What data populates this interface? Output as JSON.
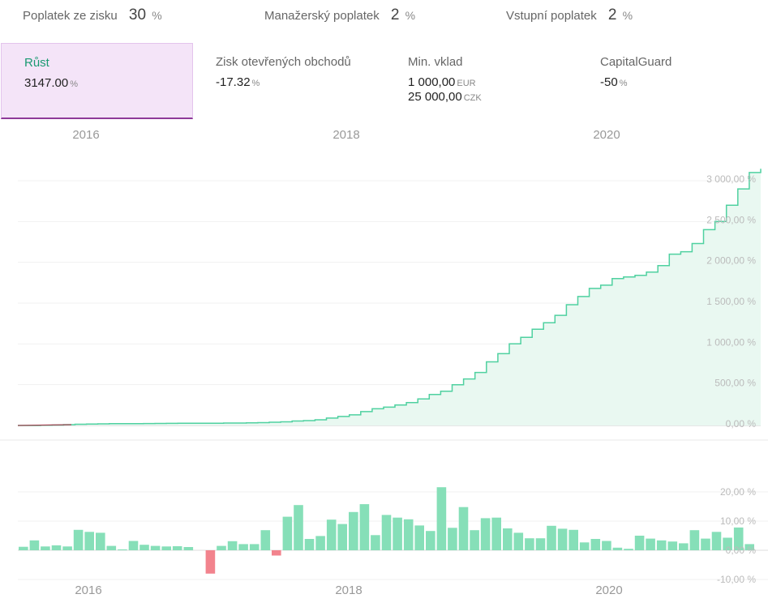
{
  "fees": [
    {
      "label": "Poplatek ze zisku",
      "value": "30",
      "unit": "%"
    },
    {
      "label": "Manažerský poplatek",
      "value": "2",
      "unit": "%"
    },
    {
      "label": "Vstupní poplatek",
      "value": "2",
      "unit": "%"
    }
  ],
  "stats": {
    "growth": {
      "label": "Růst",
      "value": "3147.00",
      "unit": "%"
    },
    "open_profit": {
      "label": "Zisk otevřených obchodů",
      "value": "-17.32",
      "unit": "%"
    },
    "min_deposit": {
      "label": "Min. vklad",
      "value1": "1 000,00",
      "unit1": "EUR",
      "value2": "25 000,00",
      "unit2": "CZK"
    },
    "capital_guard": {
      "label": "CapitalGuard",
      "value": "-50",
      "unit": "%"
    }
  },
  "colors": {
    "line": "#4fd1a0",
    "area": "#e9f8f1",
    "bar_positive": "#86dfb8",
    "bar_negative": "#f2838d",
    "accent": "#8e3a99"
  },
  "chart_data": [
    {
      "type": "area",
      "x_ticks": [
        "2016",
        "2018",
        "2020"
      ],
      "y_ticks": [
        "0,00 %",
        "500,00 %",
        "1 000,00 %",
        "1 500,00 %",
        "2 000,00 %",
        "2 500,00 %",
        "3 000,00 %"
      ],
      "ylim": [
        0,
        3000
      ],
      "grid": true,
      "x_start": "2015-05",
      "x_end": "2021-07",
      "values": [
        0,
        0,
        2,
        5,
        10,
        15,
        18,
        20,
        22,
        22,
        23,
        24,
        25,
        26,
        27,
        27,
        28,
        28,
        30,
        30,
        32,
        35,
        40,
        45,
        55,
        60,
        70,
        90,
        110,
        130,
        170,
        205,
        225,
        250,
        280,
        325,
        380,
        420,
        500,
        570,
        650,
        780,
        880,
        1000,
        1080,
        1180,
        1260,
        1350,
        1480,
        1580,
        1680,
        1720,
        1800,
        1820,
        1840,
        1880,
        1960,
        2100,
        2130,
        2230,
        2400,
        2500,
        2700,
        2900,
        3100,
        3147
      ]
    },
    {
      "type": "bar",
      "x_ticks": [
        "2016",
        "2018",
        "2020"
      ],
      "y_ticks": [
        "20,00 %",
        "10,00 %",
        "0,00 %",
        "-10,00 %"
      ],
      "ylim": [
        -10,
        20
      ],
      "grid": true,
      "values": [
        1.2,
        3.4,
        1.3,
        1.7,
        1.3,
        7.0,
        6.3,
        6.0,
        1.5,
        0.3,
        3.2,
        1.9,
        1.5,
        1.3,
        1.4,
        1.1,
        0,
        -8.0,
        1.5,
        3.1,
        2.1,
        2.1,
        6.9,
        -1.8,
        11.5,
        15.5,
        3.9,
        4.9,
        10.5,
        9.0,
        13.1,
        15.8,
        5.2,
        12.1,
        11.2,
        10.6,
        8.5,
        6.6,
        21.6,
        7.7,
        14.8,
        6.9,
        11.0,
        11.2,
        7.5,
        6.0,
        4.1,
        4.1,
        8.4,
        7.4,
        7.0,
        2.7,
        3.9,
        3.2,
        0.9,
        0.5,
        5.0,
        4.0,
        3.4,
        3.0,
        2.4,
        6.9,
        4.0,
        6.3,
        4.3,
        7.8,
        2.1
      ]
    }
  ]
}
